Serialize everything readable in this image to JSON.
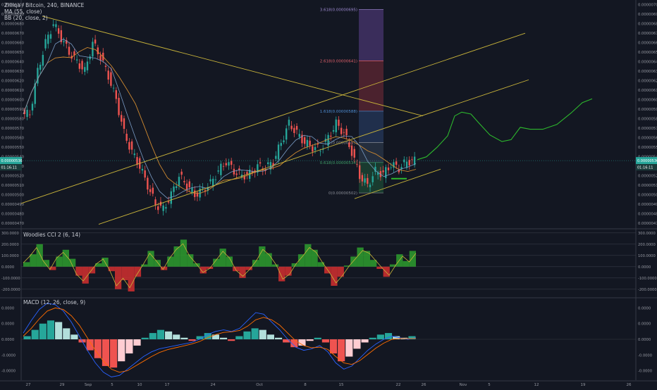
{
  "legend": {
    "title": "Zilliqa / Bitcoin, 240, BINANCE",
    "ma": "MA (55, close)",
    "bb": "BB (20, close, 2)",
    "cci": "Woodies CCI 2 (6, 14)",
    "macd": "MACD (12, 26, close, 9)"
  },
  "colors": {
    "background": "#131722",
    "up": "#26a69a",
    "down": "#ef5350",
    "channel": "#c9b43a",
    "ma": "#d08a30",
    "bb_mid": "#7a9cc6",
    "projection": "#2db82d",
    "cci_line": "#c9b43a",
    "macd_line": "#2962ff",
    "signal_line": "#ff6d00"
  },
  "price_badges": {
    "left": "0.00000536",
    "left_time": "01:16:11",
    "right": "0.00000536",
    "right_time": "01:16:11"
  },
  "chart_data": [
    {
      "type": "candlestick",
      "title": "Zilliqa / Bitcoin, 240, BINANCE",
      "y_ticks": [
        "0.00000700",
        "0.00000690",
        "0.00000680",
        "0.00000670",
        "0.00000660",
        "0.00000650",
        "0.00000640",
        "0.00000630",
        "0.00000620",
        "0.00000610",
        "0.00000600",
        "0.00000590",
        "0.00000580",
        "0.00000570",
        "0.00000560",
        "0.00000550",
        "0.00000540",
        "0.00000530",
        "0.00000520",
        "0.00000510",
        "0.00000500",
        "0.00000490",
        "0.00000480",
        "0.00000470"
      ],
      "ylim": [
        4.65e-06,
        7.02e-06
      ],
      "x_ticks": [
        "27",
        "29",
        "Sep",
        "5",
        "10",
        "17",
        "24",
        "Oct",
        "8",
        "15",
        "22",
        "26",
        "Nov",
        "5",
        "12",
        "19",
        "26"
      ],
      "close_series": [
        5.85e-06,
        6.3e-06,
        6.6e-06,
        6.8e-06,
        6.65e-06,
        6.5e-06,
        6.4e-06,
        6.3e-06,
        6.6e-06,
        6.45e-06,
        6.25e-06,
        6e-06,
        5.65e-06,
        5.45e-06,
        5.3e-06,
        5.1e-06,
        4.9e-06,
        4.85e-06,
        5e-06,
        5.2e-06,
        5.1e-06,
        5e-06,
        5.05e-06,
        5.12e-06,
        5.25e-06,
        5.35e-06,
        5.25e-06,
        5.2e-06,
        5.22e-06,
        5.3e-06,
        5.28e-06,
        5.35e-06,
        5.55e-06,
        5.75e-06,
        5.65e-06,
        5.55e-06,
        5.5e-06,
        5.48e-06,
        5.6e-06,
        5.75e-06,
        5.65e-06,
        5.45e-06,
        5.2e-06,
        5.1e-06,
        5.25e-06,
        5.22e-06,
        5.32e-06,
        5.28e-06,
        5.35e-06,
        5.36e-06
      ],
      "fib_levels": [
        {
          "label": "3.618(0.00000695)",
          "value": 6.95e-06
        },
        {
          "label": "2.618(0.00000641)",
          "value": 6.41e-06
        },
        {
          "label": "1.618(0.00000588)",
          "value": 5.88e-06
        },
        {
          "label": "1(0.00000555)",
          "value": 5.55e-06
        },
        {
          "label": "0.618(0.00000534)",
          "value": 5.34e-06
        },
        {
          "label": "0(0.00000502)",
          "value": 5.02e-06
        }
      ],
      "last_price": 5.36e-06
    },
    {
      "type": "line",
      "title": "Woodies CCI 2 (6, 14)",
      "y_ticks": [
        "300.0000",
        "200.0000",
        "100.0000",
        "0.0000",
        "-100.0000",
        "-200.0000"
      ],
      "ylim": [
        -270,
        330
      ],
      "values": [
        40,
        110,
        200,
        60,
        -30,
        90,
        150,
        70,
        -80,
        -150,
        -60,
        30,
        80,
        -40,
        -200,
        -120,
        -220,
        -90,
        20,
        140,
        60,
        -30,
        90,
        180,
        240,
        110,
        30,
        -60,
        -20,
        70,
        160,
        90,
        -40,
        -100,
        -30,
        60,
        180,
        120,
        20,
        -130,
        -80,
        30,
        110,
        200,
        150,
        40,
        -60,
        -170,
        -90,
        10,
        90,
        170,
        140,
        60,
        -20,
        -90,
        20,
        110,
        50,
        140
      ]
    },
    {
      "type": "bar",
      "title": "MACD (12, 26, close, 9)",
      "y_ticks": [
        "0.0000",
        "0.0000",
        "0.0000",
        "-0.0000",
        "-0.0000"
      ],
      "ylim": [
        -1.3,
        1.3
      ],
      "histogram": [
        0.1,
        0.3,
        0.5,
        0.6,
        0.55,
        0.35,
        0.15,
        -0.1,
        -0.35,
        -0.6,
        -0.85,
        -0.9,
        -0.7,
        -0.45,
        -0.2,
        0.05,
        0.2,
        0.3,
        0.25,
        0.15,
        0.05,
        -0.05,
        0.1,
        0.2,
        0.15,
        0.05,
        -0.05,
        0.1,
        0.25,
        0.35,
        0.3,
        0.15,
        0.05,
        -0.1,
        -0.25,
        -0.2,
        -0.05,
        0.05,
        -0.1,
        -0.45,
        -0.7,
        -0.55,
        -0.3,
        -0.1,
        0.05,
        0.15,
        0.2,
        0.1,
        0.05,
        0.1
      ],
      "macd_line": [
        0.2,
        0.6,
        0.95,
        1.15,
        1.1,
        0.9,
        0.55,
        0.1,
        -0.35,
        -0.75,
        -1.05,
        -1.2,
        -1.15,
        -0.95,
        -0.75,
        -0.55,
        -0.4,
        -0.3,
        -0.25,
        -0.2,
        -0.15,
        -0.1,
        0.0,
        0.15,
        0.25,
        0.3,
        0.25,
        0.35,
        0.6,
        0.85,
        0.8,
        0.55,
        0.3,
        0.0,
        -0.25,
        -0.35,
        -0.3,
        -0.2,
        -0.4,
        -0.75,
        -0.95,
        -0.85,
        -0.6,
        -0.35,
        -0.15,
        0.0,
        0.1,
        0.05,
        0.0,
        0.05
      ],
      "signal_line": [
        0.1,
        0.35,
        0.65,
        0.9,
        1.0,
        0.95,
        0.75,
        0.45,
        0.05,
        -0.35,
        -0.7,
        -0.95,
        -1.05,
        -1.0,
        -0.85,
        -0.7,
        -0.55,
        -0.42,
        -0.33,
        -0.27,
        -0.21,
        -0.15,
        -0.07,
        0.05,
        0.15,
        0.22,
        0.24,
        0.28,
        0.42,
        0.62,
        0.7,
        0.62,
        0.45,
        0.2,
        -0.05,
        -0.2,
        -0.27,
        -0.25,
        -0.32,
        -0.55,
        -0.75,
        -0.8,
        -0.68,
        -0.48,
        -0.28,
        -0.12,
        0.0,
        0.03,
        0.02,
        0.03
      ]
    }
  ]
}
